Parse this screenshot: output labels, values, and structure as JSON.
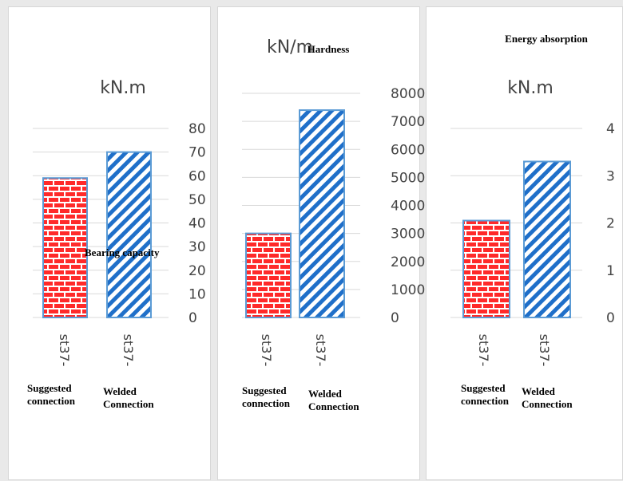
{
  "colors": {
    "suggested_fill": "#ff2a2a",
    "welded_fill": "#1f6fc9",
    "bar_border": "#5b9bd5",
    "gridline": "#d9d9d9",
    "text": "#444444"
  },
  "chart_data": [
    {
      "type": "bar",
      "title": "Bearing capacity",
      "unit": "kN.m",
      "categories": [
        "st37-",
        "st37-"
      ],
      "series_labels": [
        "Suggested connection",
        "Welded Connection"
      ],
      "values": [
        59,
        70
      ],
      "ylim": [
        0,
        80
      ],
      "yticks": [
        0,
        10,
        20,
        30,
        40,
        50,
        60,
        70,
        80
      ],
      "grid": true
    },
    {
      "type": "bar",
      "title": "Hardness",
      "unit": "kN/m",
      "categories": [
        "st37-",
        "st37-"
      ],
      "series_labels": [
        "Suggested connection",
        "Welded Connection"
      ],
      "values": [
        3000,
        7400
      ],
      "ylim": [
        0,
        8000
      ],
      "yticks": [
        0,
        1000,
        2000,
        3000,
        4000,
        5000,
        6000,
        7000,
        8000
      ],
      "grid": true
    },
    {
      "type": "bar",
      "title": "Energy absorption",
      "unit": "kN.m",
      "categories": [
        "st37-",
        "st37-"
      ],
      "series_labels": [
        "Suggested connection",
        "Welded Connection"
      ],
      "values": [
        2.05,
        3.3
      ],
      "ylim": [
        0,
        4
      ],
      "yticks": [
        0,
        1,
        2,
        3,
        4
      ],
      "grid": true
    }
  ]
}
